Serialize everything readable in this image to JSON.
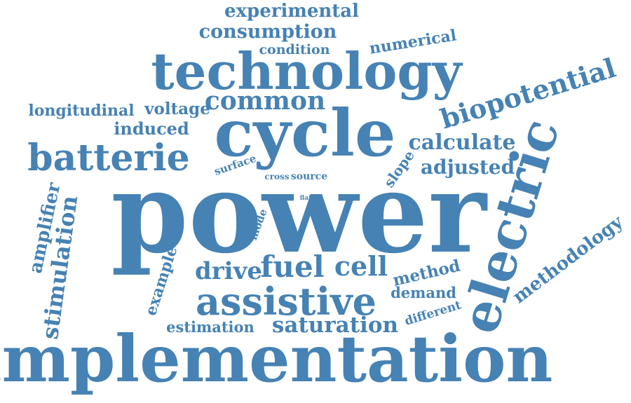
{
  "colors": {
    "word": "#4682b4",
    "background": "#ffffff"
  },
  "words": {
    "experimental": "experimental",
    "consumption": "consumption",
    "condition": "condition",
    "numerical": "numerical",
    "technology": "technology",
    "common": "common",
    "longitudinal": "longitudinal",
    "voltage": "voltage",
    "induced": "induced",
    "cycle": "cycle",
    "biopotential": "biopotential",
    "calculate": "calculate",
    "batterie": "batterie",
    "surface": "surface",
    "cross": "cross",
    "source": "source",
    "slope": "slope",
    "adjusted": "adjusted",
    "electric": "electric",
    "power": "power",
    "flat": "flat",
    "mode": "mode",
    "amplifier": "amplifier",
    "stimulation": "stimulation",
    "example": "example",
    "drive": "drive",
    "fuel": "fuel",
    "cell": "cell",
    "method": "method",
    "methodology": "methodology",
    "assistive": "assistive",
    "demand": "demand",
    "different": "different",
    "estimation": "estimation",
    "saturation": "saturation",
    "implementation": "implementation"
  }
}
